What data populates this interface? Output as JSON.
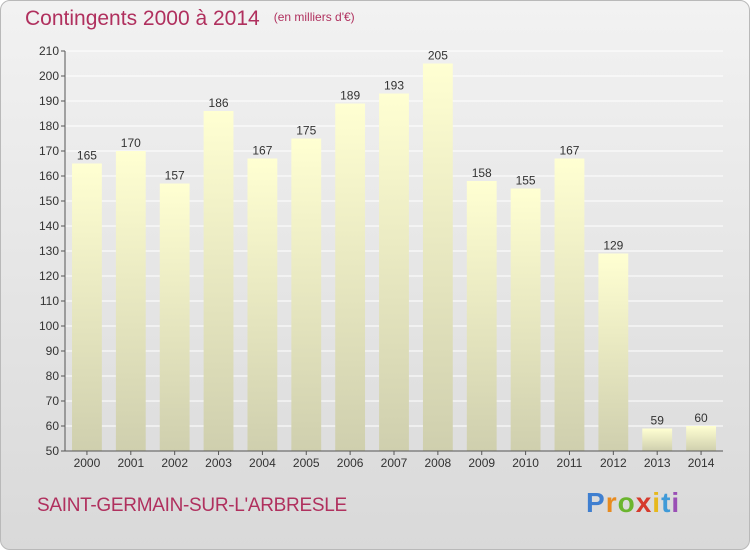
{
  "title": "Contingents 2000 à 2014",
  "subtitle": "(en milliers d'€)",
  "commune": "SAINT-GERMAIN-SUR-L'ARBRESLE",
  "brand": "Proxiti",
  "colors": {
    "title": "#b0305e",
    "bar_top": "#ffffd2",
    "bar_bottom": "#cfcfae",
    "grid": "#ffffff",
    "axis": "#555555"
  },
  "chart_data": {
    "type": "bar",
    "title": "Contingents 2000 à 2014",
    "subtitle": "(en milliers d'€)",
    "categories": [
      "2000",
      "2001",
      "2002",
      "2003",
      "2004",
      "2005",
      "2006",
      "2007",
      "2008",
      "2009",
      "2010",
      "2011",
      "2012",
      "2013",
      "2014"
    ],
    "values": [
      165,
      170,
      157,
      186,
      167,
      175,
      189,
      193,
      205,
      158,
      155,
      167,
      129,
      59,
      60
    ],
    "ylim": [
      50,
      210
    ],
    "ytick_step": 10,
    "grid": true,
    "data_labels": true
  }
}
